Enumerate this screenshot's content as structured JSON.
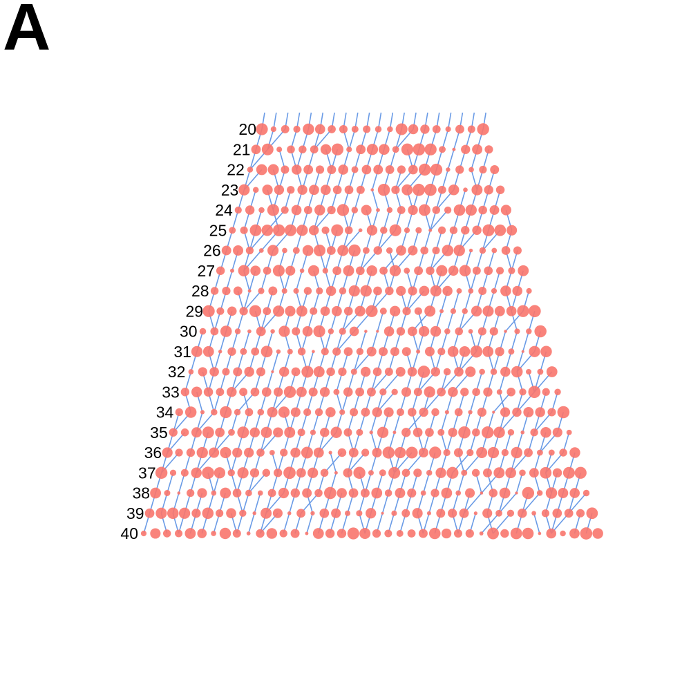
{
  "panel_label": "A",
  "colors": {
    "node": "#f8766d",
    "edge": "#6a9be6",
    "label": "#000000"
  },
  "rows": [
    20,
    21,
    22,
    23,
    24,
    25,
    26,
    27,
    28,
    29,
    30,
    31,
    32,
    33,
    34,
    35,
    36,
    37,
    38,
    39,
    40
  ]
}
